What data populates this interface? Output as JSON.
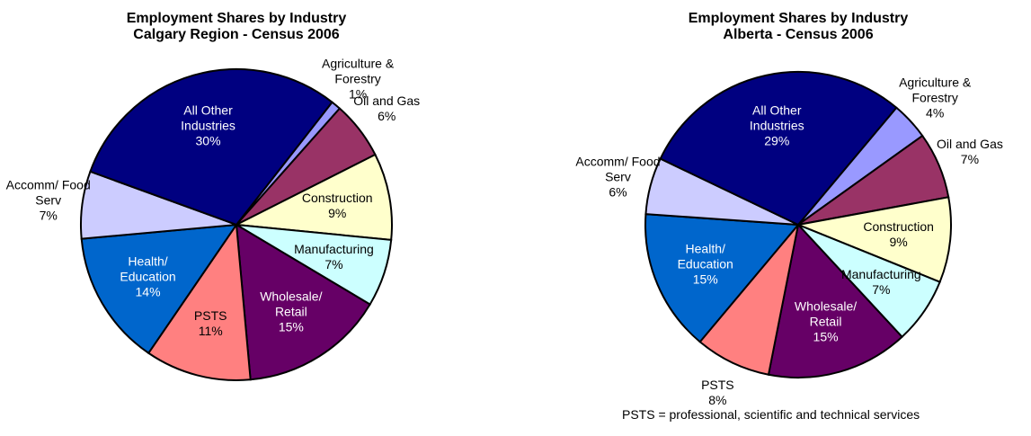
{
  "chart_data": [
    {
      "type": "pie",
      "title": "Employment Shares by Industry",
      "subtitle": "Calgary Region - Census 2006",
      "categories": [
        "Agriculture & Forestry",
        "Oil and Gas",
        "Construction",
        "Manufacturing",
        "Wholesale/ Retail",
        "PSTS",
        "Health/ Education",
        "Accomm/ Food Serv",
        "All Other Industries"
      ],
      "values": [
        1,
        6,
        9,
        7,
        15,
        11,
        14,
        7,
        30
      ],
      "value_labels": [
        "1%",
        "6%",
        "9%",
        "7%",
        "15%",
        "11%",
        "14%",
        "7%",
        "30%"
      ],
      "colors": [
        "#9999ff",
        "#993366",
        "#ffffcc",
        "#ccffff",
        "#660066",
        "#ff8080",
        "#0066cc",
        "#ccccff",
        "#000080"
      ]
    },
    {
      "type": "pie",
      "title": "Employment Shares by Industry",
      "subtitle": "Alberta - Census 2006",
      "categories": [
        "Agriculture & Forestry",
        "Oil and Gas",
        "Construction",
        "Manufacturing",
        "Wholesale/ Retail",
        "PSTS",
        "Health/ Education",
        "Accomm/ Food Serv",
        "All Other Industries"
      ],
      "values": [
        4,
        7,
        9,
        7,
        15,
        8,
        15,
        6,
        29
      ],
      "value_labels": [
        "4%",
        "7%",
        "9%",
        "7%",
        "15%",
        "8%",
        "15%",
        "6%",
        "29%"
      ],
      "colors": [
        "#9999ff",
        "#993366",
        "#ffffcc",
        "#ccffff",
        "#660066",
        "#ff8080",
        "#0066cc",
        "#ccccff",
        "#000080"
      ]
    }
  ],
  "footnote": "PSTS = professional, scientific and technical services"
}
